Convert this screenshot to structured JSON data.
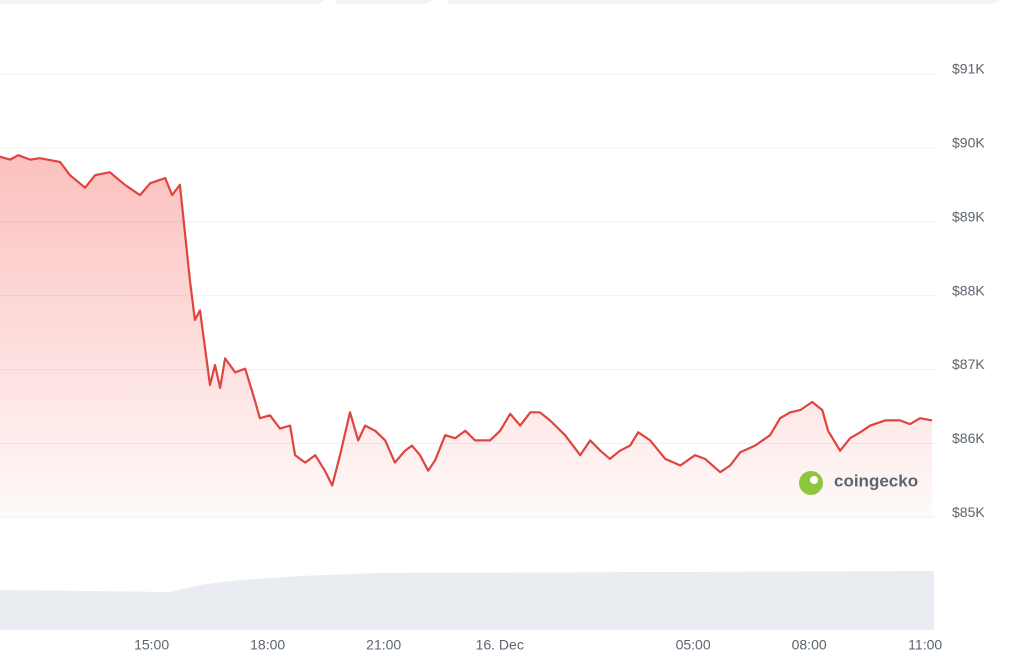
{
  "chart_data": {
    "type": "line",
    "watermark": "coingecko",
    "x": [
      11.08,
      11.34,
      11.55,
      11.86,
      12.11,
      12.63,
      12.89,
      13.28,
      13.54,
      13.92,
      14.31,
      14.7,
      14.96,
      15.35,
      15.53,
      15.73,
      15.99,
      16.12,
      16.25,
      16.51,
      16.64,
      16.77,
      16.9,
      17.16,
      17.42,
      17.67,
      17.8,
      18.06,
      18.32,
      18.58,
      18.71,
      18.97,
      19.23,
      19.48,
      19.67,
      19.87,
      20.13,
      20.34,
      20.52,
      20.78,
      21.04,
      21.29,
      21.55,
      21.73,
      21.94,
      22.15,
      22.33,
      22.59,
      22.85,
      23.11,
      23.36,
      23.75,
      24.01,
      24.27,
      24.53,
      24.79,
      25.04,
      25.3,
      25.69,
      26.08,
      26.34,
      26.6,
      26.85,
      27.11,
      27.37,
      27.58,
      27.89,
      28.28,
      28.67,
      29.05,
      29.31,
      29.7,
      29.96,
      30.22,
      30.6,
      30.99,
      31.25,
      31.51,
      31.77,
      32.08,
      32.34,
      32.49,
      32.8,
      33.06,
      33.32,
      33.58,
      33.97,
      34.35,
      34.61,
      34.87,
      35.18
    ],
    "series": [
      {
        "color": "#e0443f",
        "values": [
          89880,
          89840,
          89900,
          89840,
          89860,
          89810,
          89630,
          89460,
          89630,
          89670,
          89500,
          89360,
          89520,
          89590,
          89360,
          89500,
          88210,
          87670,
          87800,
          86790,
          87060,
          86750,
          87150,
          86960,
          87010,
          86580,
          86340,
          86380,
          86200,
          86240,
          85840,
          85740,
          85840,
          85630,
          85430,
          85840,
          86420,
          86040,
          86240,
          86170,
          86040,
          85740,
          85900,
          85970,
          85840,
          85630,
          85770,
          86110,
          86070,
          86170,
          86040,
          86040,
          86170,
          86400,
          86240,
          86420,
          86420,
          86310,
          86110,
          85840,
          86040,
          85900,
          85790,
          85900,
          85970,
          86150,
          86040,
          85790,
          85700,
          85840,
          85790,
          85610,
          85700,
          85880,
          85970,
          86110,
          86340,
          86420,
          86450,
          86560,
          86450,
          86170,
          85900,
          86070,
          86150,
          86240,
          86310,
          86310,
          86260,
          86340,
          86310
        ]
      }
    ],
    "xlim": [
      11.08,
      35.28
    ],
    "xticks": [
      {
        "value": 15,
        "label": "15:00"
      },
      {
        "value": 18,
        "label": "18:00"
      },
      {
        "value": 21,
        "label": "21:00"
      },
      {
        "value": 24,
        "label": "16. Dec"
      },
      {
        "value": 29,
        "label": "05:00"
      },
      {
        "value": 32,
        "label": "08:00"
      },
      {
        "value": 35,
        "label": "11:00"
      }
    ],
    "ylim": [
      84800,
      91500
    ],
    "yticks": [
      {
        "value": 85000,
        "label": "$85K"
      },
      {
        "value": 86000,
        "label": "$86K"
      },
      {
        "value": 87000,
        "label": "$87K"
      },
      {
        "value": 88000,
        "label": "$88K"
      },
      {
        "value": 89000,
        "label": "$89K"
      },
      {
        "value": 90000,
        "label": "$90K"
      },
      {
        "value": 91000,
        "label": "$91K"
      }
    ],
    "grid": true
  }
}
